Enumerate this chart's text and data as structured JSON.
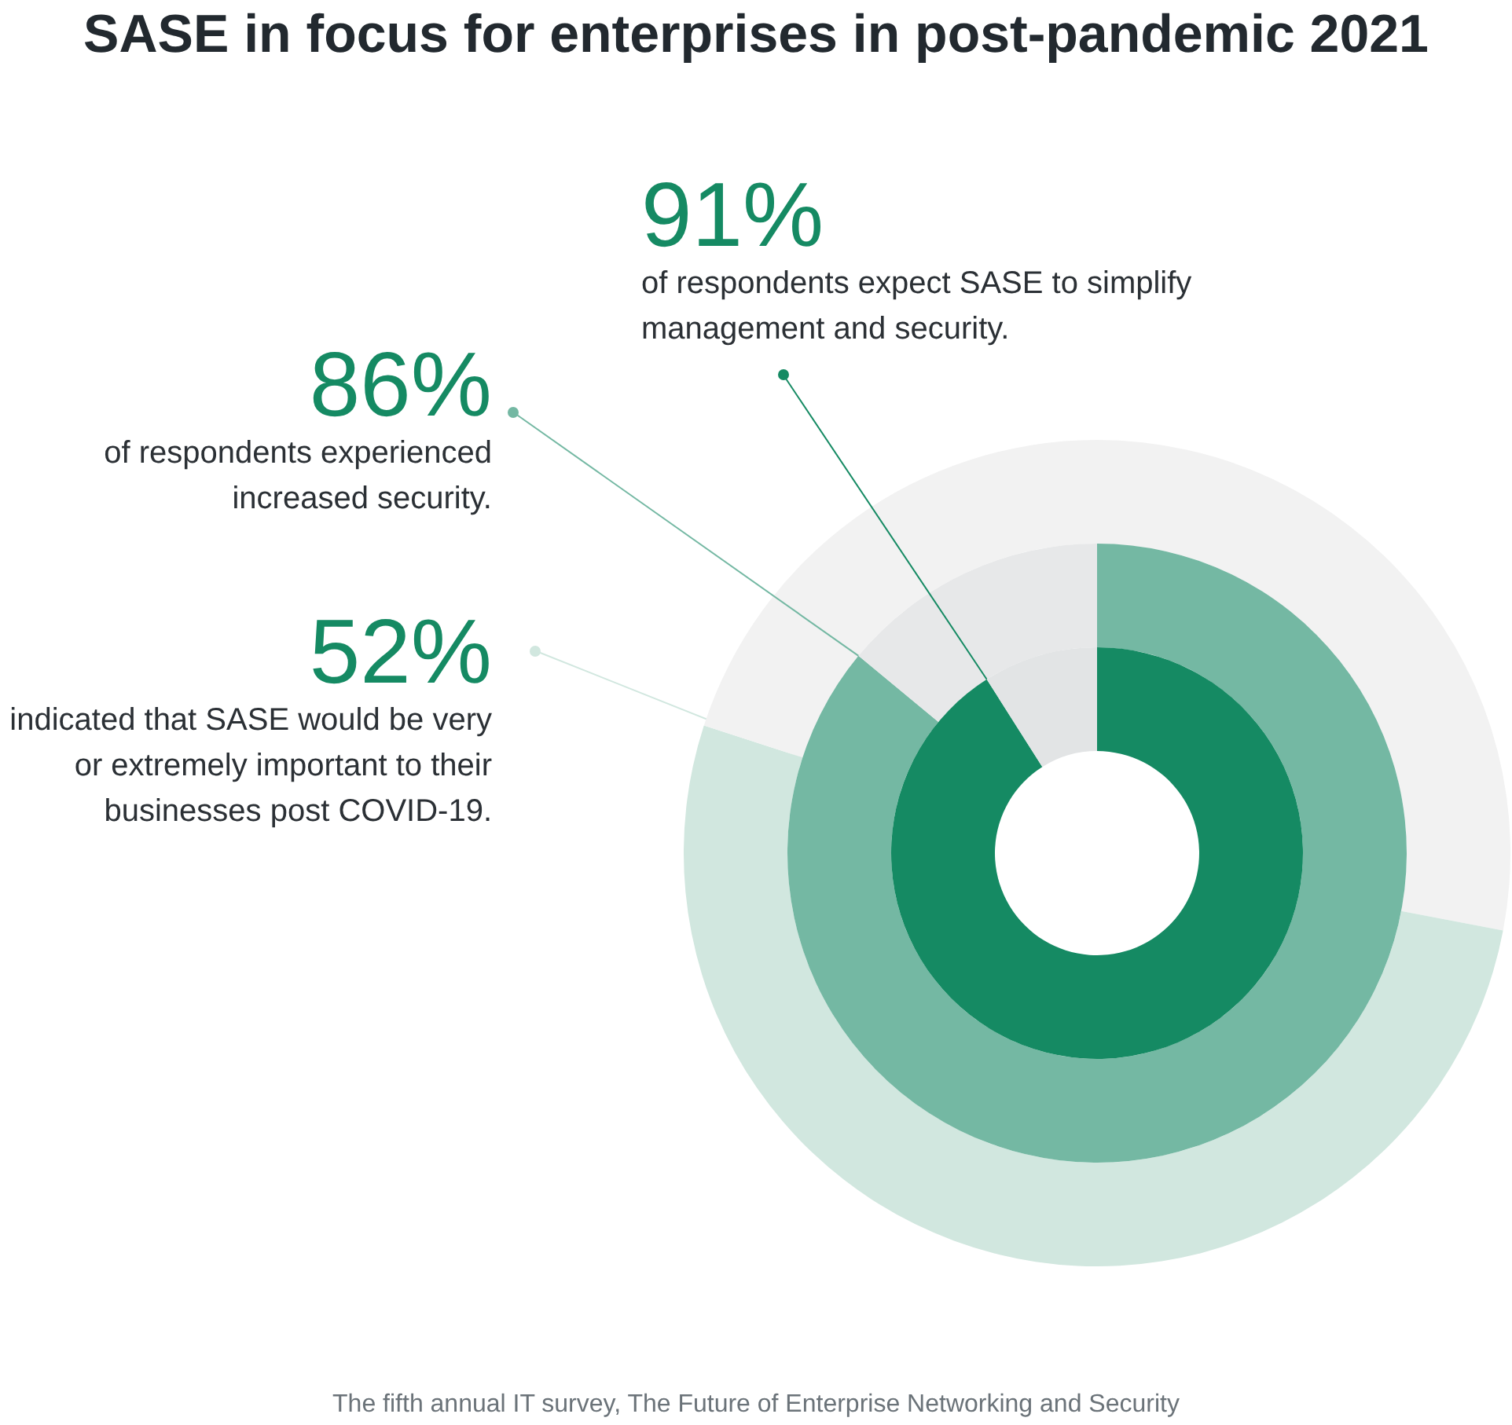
{
  "chart_data": {
    "type": "donut",
    "title": "SASE in focus for enterprises in post-pandemic 2021",
    "series": [
      {
        "name": "of respondents expect SASE to simplify management and security.",
        "values": [
          91,
          9
        ],
        "colors": [
          "#158a63",
          "#e2e4e5"
        ],
        "value_labels": [
          "91%",
          null
        ]
      },
      {
        "name": "of respondents experienced increased security.",
        "values": [
          86,
          14
        ],
        "colors": [
          "#74b8a3",
          "#e7e8e9"
        ],
        "value_labels": [
          "86%",
          null
        ]
      },
      {
        "name": "indicated that SASE would be very or extremely important to their businesses post COVID-19.",
        "values": [
          28,
          52,
          20
        ],
        "colors": [
          "#f2f2f2",
          "#d1e7df",
          "#f2f2f2"
        ],
        "value_labels": [
          null,
          "52%",
          null
        ]
      }
    ],
    "annotations": [
      "The fifth annual IT survey, The Future of Enterprise Networking and Security"
    ]
  }
}
